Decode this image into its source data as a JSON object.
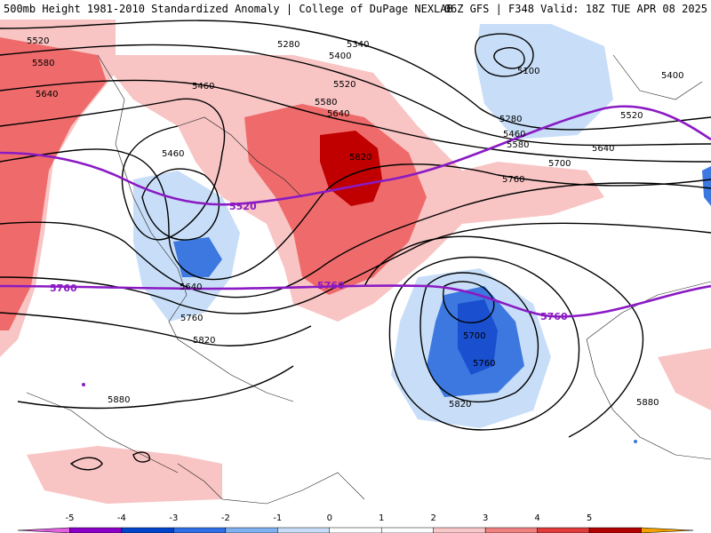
{
  "header": {
    "title_left": "500mb Height 1981-2010 Standardized Anomaly | College of DuPage NEXLAB",
    "title_right": "06Z GFS | F348 Valid: 18Z TUE APR 08 2025"
  },
  "contour_labels": [
    {
      "text": "5520",
      "id": "c5520a"
    },
    {
      "text": "5580",
      "id": "c5580a"
    },
    {
      "text": "5640",
      "id": "c5640a"
    },
    {
      "text": "5280",
      "id": "c5280a"
    },
    {
      "text": "5340",
      "id": "c5340a"
    },
    {
      "text": "5400",
      "id": "c5400a"
    },
    {
      "text": "5460",
      "id": "c5460a"
    },
    {
      "text": "5520",
      "id": "c5520b"
    },
    {
      "text": "5580",
      "id": "c5580b"
    },
    {
      "text": "5640",
      "id": "c5640b"
    },
    {
      "text": "5820",
      "id": "c5820a"
    },
    {
      "text": "5100",
      "id": "c5100"
    },
    {
      "text": "5280",
      "id": "c5280b"
    },
    {
      "text": "5460",
      "id": "c5460b"
    },
    {
      "text": "5580",
      "id": "c5580c"
    },
    {
      "text": "5640",
      "id": "c5640c"
    },
    {
      "text": "5700",
      "id": "c5700a"
    },
    {
      "text": "5760",
      "id": "c5760a"
    },
    {
      "text": "5400",
      "id": "c5400b"
    },
    {
      "text": "5520",
      "id": "c5520c"
    },
    {
      "text": "5460",
      "id": "c5460c"
    },
    {
      "text": "5640",
      "id": "c5640d"
    },
    {
      "text": "5760",
      "id": "c5760b"
    },
    {
      "text": "5820",
      "id": "c5820b"
    },
    {
      "text": "5880",
      "id": "c5880a"
    },
    {
      "text": "5700",
      "id": "c5700b"
    },
    {
      "text": "5760",
      "id": "c5760c"
    },
    {
      "text": "5820",
      "id": "c5820c"
    },
    {
      "text": "5880",
      "id": "c5880b"
    }
  ],
  "highlight_labels": [
    {
      "text": "5520",
      "id": "h5520"
    },
    {
      "text": "5760",
      "id": "h5760a"
    },
    {
      "text": "5760",
      "id": "h5760b"
    },
    {
      "text": "5760",
      "id": "h5760c"
    }
  ],
  "colorbar": {
    "ticks": [
      "-5",
      "-4",
      "-3",
      "-2",
      "-1",
      "0",
      "1",
      "2",
      "3",
      "4",
      "5"
    ],
    "colors": [
      "#e060e0",
      "#8a00c8",
      "#0044cc",
      "#2f6fe8",
      "#7fb0f0",
      "#c8def8",
      "#ffffff",
      "#ffffff",
      "#f8c8c8",
      "#f08080",
      "#e03c3c",
      "#b00000",
      "#f0a000"
    ]
  },
  "shading_colors": {
    "light_red": "#f8c4c4",
    "red": "#ef6b6b",
    "dark_red": "#c00000",
    "light_blue": "#c8def8",
    "blue": "#3c78e0",
    "dark_blue": "#1a4fcf"
  },
  "contour_color": "#000000",
  "highlight_color": "#8a1ac4"
}
